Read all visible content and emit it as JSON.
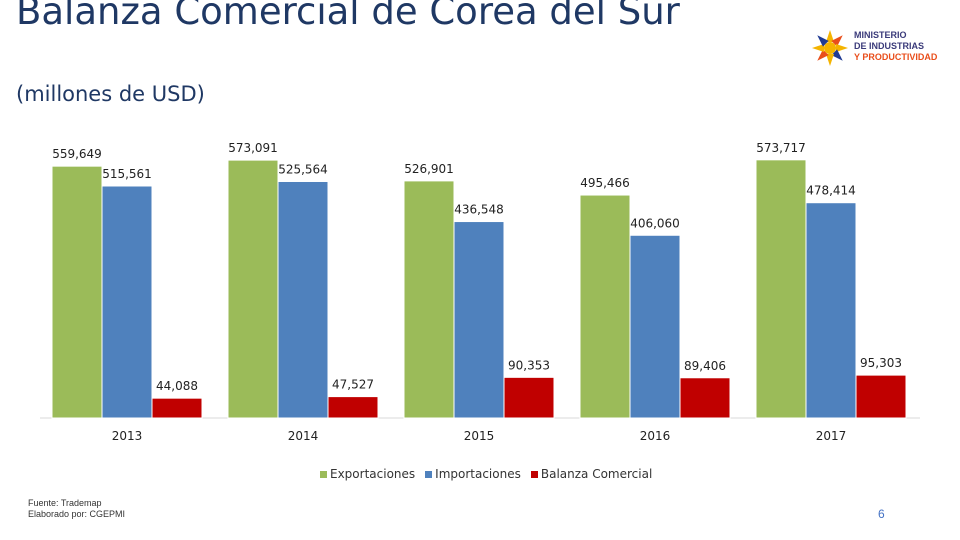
{
  "title": "Balanza Comercial de Corea del Sur",
  "subtitle": "(millones de USD)",
  "logo": {
    "line1": "MINISTERIO",
    "line2": "DE INDUSTRIAS",
    "line3": "Y PRODUCTIVIDAD"
  },
  "footer": {
    "source": "Fuente: Trademap",
    "author": "Elaborado por: CGEPMI"
  },
  "page_number": "6",
  "colors": {
    "exportaciones": "#9bbb59",
    "importaciones": "#4f81bd",
    "balanza": "#c00000"
  },
  "chart_data": {
    "type": "bar",
    "categories": [
      "2013",
      "2014",
      "2015",
      "2016",
      "2017"
    ],
    "series": [
      {
        "name": "Exportaciones",
        "values": [
          559649,
          573091,
          526901,
          495466,
          573717
        ],
        "labels": [
          "559,649",
          "573,091",
          "526,901",
          "495,466",
          "573,717"
        ]
      },
      {
        "name": "Importaciones",
        "values": [
          515561,
          525564,
          436548,
          406060,
          478414
        ],
        "labels": [
          "515,561",
          "525,564",
          "436,548",
          "406,060",
          "478,414"
        ]
      },
      {
        "name": "Balanza Comercial",
        "values": [
          44088,
          47527,
          90353,
          89406,
          95303
        ],
        "labels": [
          "44,088",
          "47,527",
          "90,353",
          "89,406",
          "95,303"
        ]
      }
    ],
    "ylim": [
      0,
      600000
    ],
    "legend": "bottom",
    "grid": false
  }
}
